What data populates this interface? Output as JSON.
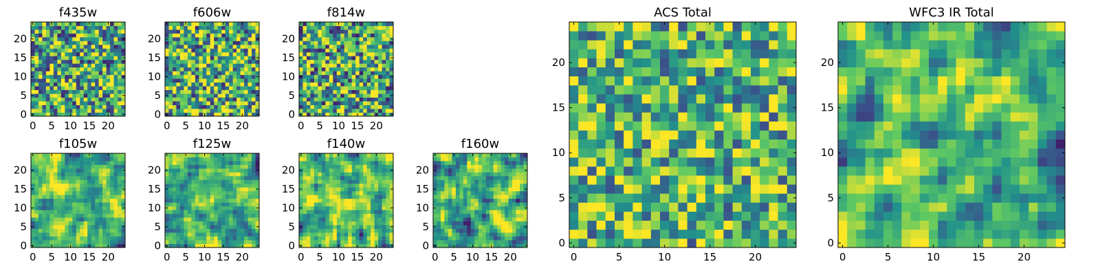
{
  "colormap": [
    "#440154",
    "#3b528b",
    "#21918c",
    "#5ec962",
    "#fde725"
  ],
  "chart_data": [
    {
      "id": "f435w",
      "type": "heatmap",
      "title": "f435w",
      "grid_size": 25,
      "value_range": [
        0,
        1
      ],
      "seed": 11,
      "smoothing": 0,
      "mean": 0.62,
      "spread": 0.5,
      "xticks": [
        0,
        5,
        10,
        15,
        20
      ],
      "yticks": [
        0,
        5,
        10,
        15,
        20
      ]
    },
    {
      "id": "f606w",
      "type": "heatmap",
      "title": "f606w",
      "grid_size": 25,
      "value_range": [
        0,
        1
      ],
      "seed": 23,
      "smoothing": 0,
      "mean": 0.64,
      "spread": 0.5,
      "xticks": [
        0,
        5,
        10,
        15,
        20
      ],
      "yticks": [
        0,
        5,
        10,
        15,
        20
      ]
    },
    {
      "id": "f814w",
      "type": "heatmap",
      "title": "f814w",
      "grid_size": 25,
      "value_range": [
        0,
        1
      ],
      "seed": 37,
      "smoothing": 0,
      "mean": 0.6,
      "spread": 0.5,
      "xticks": [
        0,
        5,
        10,
        15,
        20
      ],
      "yticks": [
        0,
        5,
        10,
        15,
        20
      ]
    },
    {
      "id": "f105w",
      "type": "heatmap",
      "title": "f105w",
      "grid_size": 25,
      "value_range": [
        0,
        1
      ],
      "seed": 41,
      "smoothing": 1,
      "mean": 0.66,
      "spread": 0.55,
      "xticks": [
        0,
        5,
        10,
        15,
        20
      ],
      "yticks": [
        0,
        5,
        10,
        15,
        20
      ]
    },
    {
      "id": "f125w",
      "type": "heatmap",
      "title": "f125w",
      "grid_size": 25,
      "value_range": [
        0,
        1
      ],
      "seed": 53,
      "smoothing": 1,
      "mean": 0.63,
      "spread": 0.55,
      "xticks": [
        0,
        5,
        10,
        15,
        20
      ],
      "yticks": [
        0,
        5,
        10,
        15,
        20
      ]
    },
    {
      "id": "f140w",
      "type": "heatmap",
      "title": "f140w",
      "grid_size": 25,
      "value_range": [
        0,
        1
      ],
      "seed": 67,
      "smoothing": 1,
      "mean": 0.65,
      "spread": 0.55,
      "xticks": [
        0,
        5,
        10,
        15,
        20
      ],
      "yticks": [
        0,
        5,
        10,
        15,
        20
      ]
    },
    {
      "id": "f160w",
      "type": "heatmap",
      "title": "f160w",
      "grid_size": 25,
      "value_range": [
        0,
        1
      ],
      "seed": 79,
      "smoothing": 1,
      "mean": 0.64,
      "spread": 0.55,
      "xticks": [
        0,
        5,
        10,
        15,
        20
      ],
      "yticks": [
        0,
        5,
        10,
        15,
        20
      ]
    },
    {
      "id": "acs-total",
      "type": "heatmap",
      "title": "ACS Total",
      "grid_size": 25,
      "value_range": [
        0,
        1
      ],
      "seed": 97,
      "smoothing": 0,
      "mean": 0.66,
      "spread": 0.42,
      "xticks": [
        0,
        5,
        10,
        15,
        20
      ],
      "yticks": [
        0,
        5,
        10,
        15,
        20
      ]
    },
    {
      "id": "wfc3-ir-total",
      "type": "heatmap",
      "title": "WFC3 IR Total",
      "grid_size": 25,
      "value_range": [
        0,
        1
      ],
      "seed": 113,
      "smoothing": 1,
      "mean": 0.6,
      "spread": 0.5,
      "xticks": [
        0,
        5,
        10,
        15,
        20
      ],
      "yticks": [
        0,
        5,
        10,
        15,
        20
      ]
    }
  ]
}
